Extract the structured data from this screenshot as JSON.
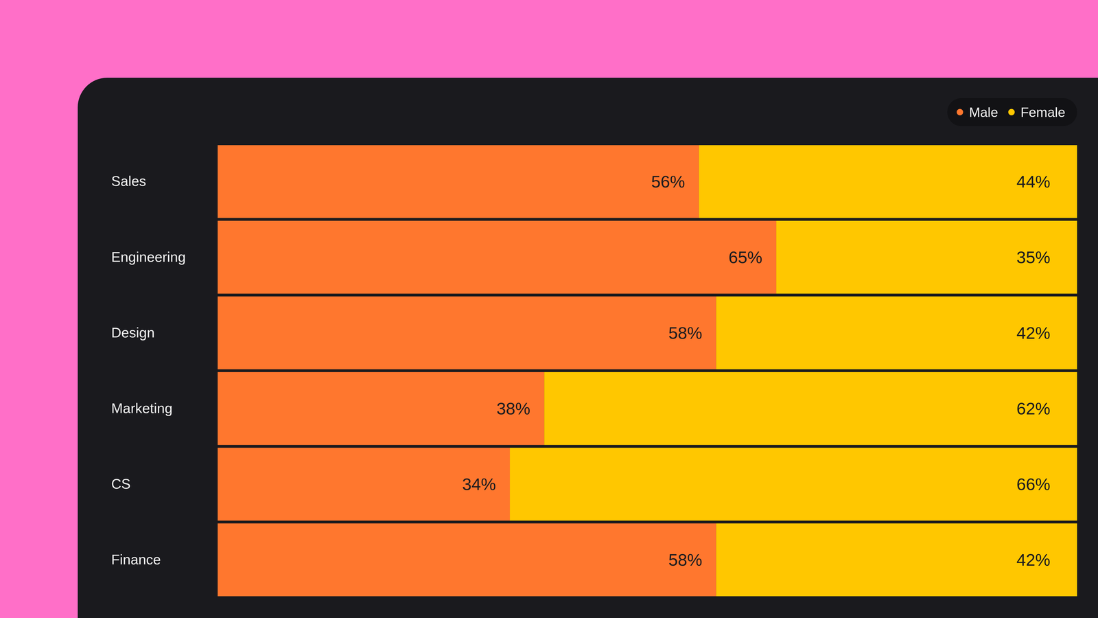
{
  "chart_data": {
    "type": "bar",
    "orientation": "horizontal",
    "stacked": true,
    "data_labels": true,
    "legend": "top-right",
    "tick_labels": "y",
    "categories": [
      "Sales",
      "Engineering",
      "Design",
      "Marketing",
      "CS",
      "Finance"
    ],
    "xlim": [
      0,
      100
    ],
    "series": [
      {
        "name": "Male",
        "color": "#ff772e",
        "values": [
          56,
          65,
          58,
          38,
          34,
          58
        ],
        "value_labels": [
          "56%",
          "65%",
          "58%",
          "38%",
          "34%",
          "58%"
        ]
      },
      {
        "name": "Female",
        "color": "#ffc700",
        "values": [
          44,
          35,
          42,
          62,
          66,
          42
        ],
        "value_labels": [
          "44%",
          "35%",
          "42%",
          "62%",
          "66%",
          "42%"
        ]
      }
    ]
  }
}
